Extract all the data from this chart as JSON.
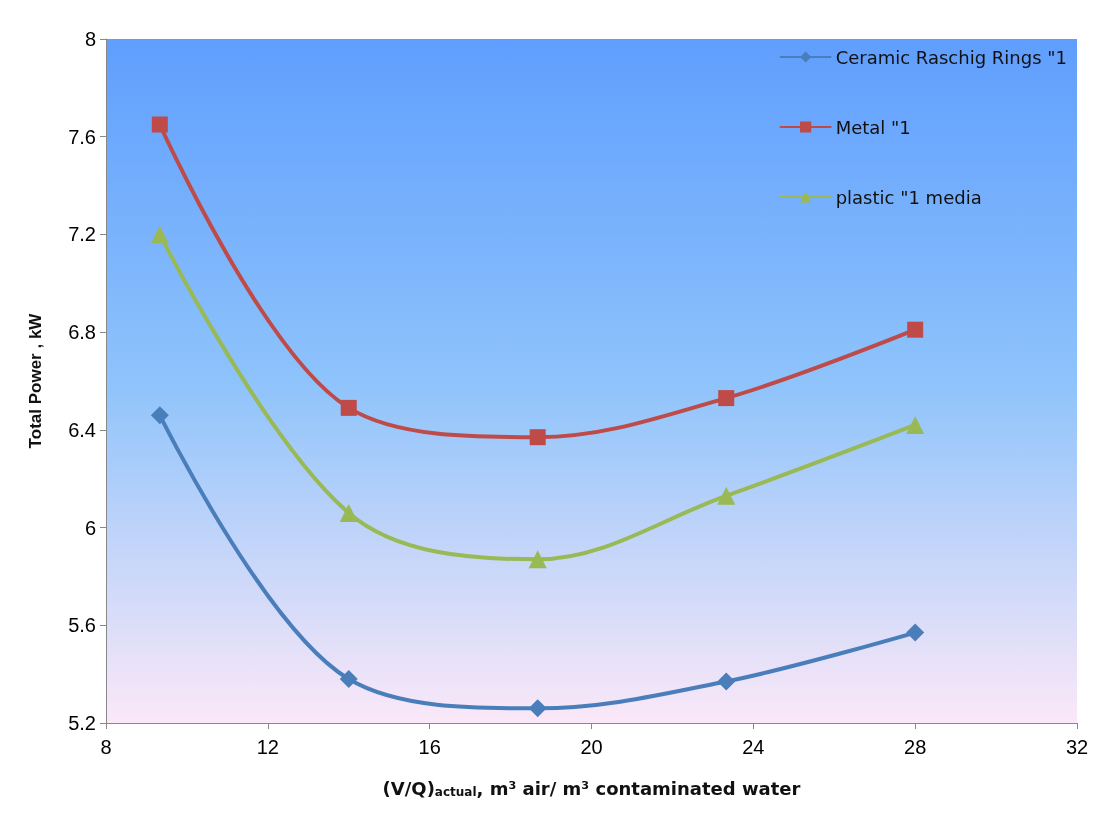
{
  "chart_data": {
    "type": "line",
    "xlabel": "(V/Q)$_{actual}$, m³ air/ m³ contaminated water",
    "ylabel": "Total Power , kW",
    "x": [
      9.33,
      14,
      18.67,
      23.33,
      28
    ],
    "series": [
      {
        "name": "Ceramic Raschig Rings \"1",
        "color": "#4a7ebb",
        "marker": "diamond",
        "values": [
          6.46,
          5.38,
          5.26,
          5.37,
          5.57
        ]
      },
      {
        "name": "Metal \"1",
        "color": "#be4b48",
        "marker": "square",
        "values": [
          7.65,
          6.49,
          6.37,
          6.53,
          6.81
        ]
      },
      {
        "name": "plastic \"1 media",
        "color": "#98b954",
        "marker": "triangle",
        "values": [
          7.2,
          6.06,
          5.87,
          6.13,
          6.42
        ]
      }
    ],
    "xlim": [
      8,
      32
    ],
    "xticks": [
      8,
      12,
      16,
      20,
      24,
      28,
      32
    ],
    "ylim": [
      5.2,
      8
    ],
    "yticks": [
      5.2,
      5.6,
      6,
      6.4,
      6.8,
      7.2,
      7.6,
      8
    ],
    "grid": false,
    "legend": "top right",
    "line_style": "solid"
  }
}
